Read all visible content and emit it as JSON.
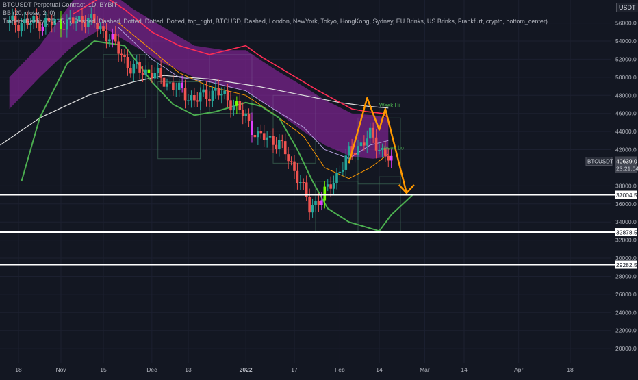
{
  "header": {
    "symbol_line": "BTCUSDT Perpetual Contract, 1D, BYBIT",
    "indicator_bb": "BB (20, close, 2, 0)",
    "indicator_tr": "Traders Reality (25, -5, 5, Dashed, Dashed, Dotted, Dotted, Dotted, top_right, BTCUSD, Dashed, London, NewYork, Tokyo, HongKong, Sydney, EU Brinks, US Brinks, Frankfurt, crypto, bottom_center)",
    "currency": "USDT"
  },
  "price_label": {
    "symbol": "BTCUSDT",
    "price": "40639.0",
    "countdown": "23:21:04"
  },
  "colors": {
    "background": "#131722",
    "axis_text": "#b2b5be",
    "candle_up": "#26a69a",
    "candle_down": "#ef5350",
    "candle_magenta": "#e040fb",
    "candle_lime": "#76ff03",
    "ma_white": "#e0e0e0",
    "ma_red": "#ff2d55",
    "ma_orange": "#ff9800",
    "ma_purple": "#b39ddb",
    "cloud_purple": "#9c27b0",
    "bb_green": "#4caf50",
    "pattern_orange": "#ff9800",
    "level_white": "#ffffff"
  },
  "chart_data": {
    "type": "candlestick",
    "title": "BTCUSDT Perpetual Contract, 1D, BYBIT",
    "y_axis": {
      "ticks": [
        "56000.0",
        "54000.0",
        "52000.0",
        "50000.0",
        "48000.0",
        "46000.0",
        "44000.0",
        "42000.0",
        "38000.0",
        "36000.0",
        "34000.0",
        "32000.0",
        "30000.0",
        "28000.0",
        "26000.0",
        "24000.0",
        "22000.0",
        "20000.0"
      ],
      "range": [
        18800,
        57900
      ]
    },
    "x_axis": {
      "ticks": [
        "18",
        "Nov",
        "15",
        "Dec",
        "13",
        "2022",
        "17",
        "Feb",
        "14",
        "Mar",
        "14",
        "Apr",
        "18"
      ]
    },
    "levels": [
      {
        "value": 37004.5,
        "label": "37004.5"
      },
      {
        "value": 32878.5,
        "label": "32878.5"
      },
      {
        "value": 29282.5,
        "label": "29282.5"
      }
    ],
    "annotations": [
      "Week Hi",
      "Week Lo"
    ],
    "price_series": [
      {
        "date": "2021-11-03",
        "close": 56000
      },
      {
        "date": "2021-11-10",
        "close": 56500
      },
      {
        "date": "2021-11-17",
        "close": 54500
      },
      {
        "date": "2021-11-24",
        "close": 51000
      },
      {
        "date": "2021-12-01",
        "close": 50500
      },
      {
        "date": "2021-12-08",
        "close": 49000
      },
      {
        "date": "2021-12-15",
        "close": 47500
      },
      {
        "date": "2021-12-22",
        "close": 48500
      },
      {
        "date": "2021-12-29",
        "close": 46800
      },
      {
        "date": "2022-01-05",
        "close": 43500
      },
      {
        "date": "2022-01-12",
        "close": 42800
      },
      {
        "date": "2022-01-19",
        "close": 38500
      },
      {
        "date": "2022-01-22",
        "close": 35500
      },
      {
        "date": "2022-01-28",
        "close": 37500
      },
      {
        "date": "2022-02-04",
        "close": 41500
      },
      {
        "date": "2022-02-11",
        "close": 43500
      },
      {
        "date": "2022-02-18",
        "close": 40639
      }
    ],
    "pattern": {
      "type": "double_top",
      "points": [
        {
          "date": "2022-02-04",
          "value": 40500
        },
        {
          "date": "2022-02-10",
          "value": 47700
        },
        {
          "date": "2022-02-14",
          "value": 44200
        },
        {
          "date": "2022-02-16",
          "value": 46500
        },
        {
          "date": "2022-02-23",
          "value": 37200
        }
      ]
    }
  }
}
